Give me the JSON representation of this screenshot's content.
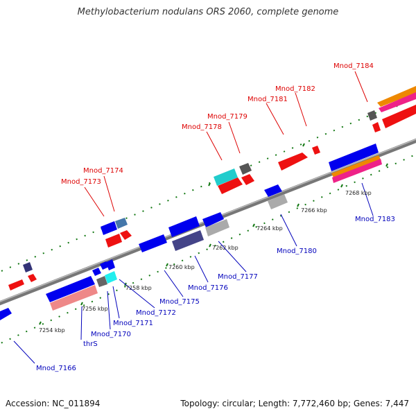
{
  "title": "Methylobacterium nodulans ORS 2060, complete genome",
  "footer": {
    "accession": "Accession: NC_011894",
    "topology": "Topology: circular; Length: 7,772,460 bp; Genes: 7,447"
  },
  "scale_ticks": [
    "7254 kbp",
    "7256 kbp",
    "7258 kbp",
    "7260 kbp",
    "7262 kbp",
    "7264 kbp",
    "7266 kbp",
    "7268 kbp"
  ],
  "gene_labels_top": [
    "Mnod_7173",
    "Mnod_7174",
    "Mnod_7178",
    "Mnod_7179",
    "Mnod_7181",
    "Mnod_7182",
    "Mnod_7184"
  ],
  "gene_labels_bottom": [
    "Mnod_7166",
    "thrS",
    "Mnod_7170",
    "Mnod_7171",
    "Mnod_7172",
    "Mnod_7175",
    "Mnod_7176",
    "Mnod_7177",
    "Mnod_7180",
    "Mnod_7183"
  ],
  "colors": {
    "top_label": "#dd0000",
    "bottom_label": "#0000bb",
    "backbone": "#888888",
    "forward_gene": "#ee0000",
    "reverse_gene": "#0000ee",
    "tick": "#117711"
  }
}
